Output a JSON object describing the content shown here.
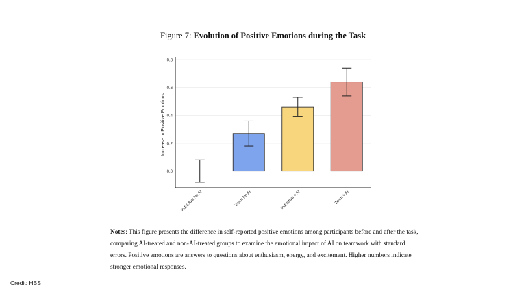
{
  "figure": {
    "label": "Figure 7:",
    "title": "Evolution of Positive Emotions during the Task"
  },
  "notes": {
    "label": "Notes",
    "text": ": This figure presents the difference in self-reported positive emotions among participants before and after the task, comparing AI-treated and non-AI-treated groups to examine the emotional impact of AI on teamwork with standard errors. Positive emotions are answers to questions about enthusiasm, energy, and excitement. Higher numbers indicate stronger emotional responses."
  },
  "credit": "Credit: HBS",
  "chart_data": {
    "type": "bar",
    "title": "",
    "xlabel": "",
    "ylabel": "Increase in Positive Emotions",
    "categories": [
      "Individual No AI",
      "Team No AI",
      "Individual + AI",
      "Team + AI"
    ],
    "values": [
      0.0,
      0.27,
      0.46,
      0.64
    ],
    "error_low": [
      -0.08,
      0.18,
      0.39,
      0.54
    ],
    "error_high": [
      0.08,
      0.36,
      0.53,
      0.74
    ],
    "colors": [
      "#ffffff",
      "#7ea4ee",
      "#f8d67d",
      "#e49b90"
    ],
    "yticks": [
      "0.0",
      "0.2",
      "0.4",
      "0.6",
      "0.8"
    ],
    "ylim": [
      -0.12,
      0.82
    ],
    "grid": true,
    "zero_line": "dashed"
  }
}
